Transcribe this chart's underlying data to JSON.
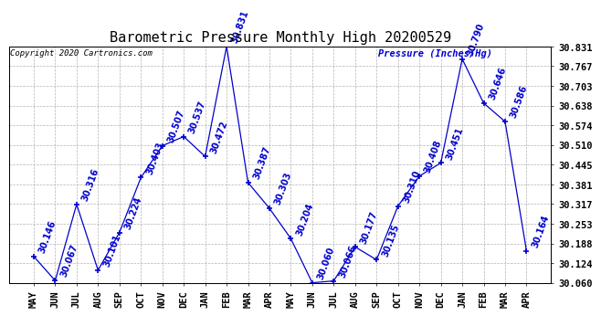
{
  "title": "Barometric Pressure Monthly High 20200529",
  "copyright": "Copyright 2020 Cartronics.com",
  "ylabel": "Pressure (Inches/Hg)",
  "categories": [
    "MAY",
    "JUN",
    "JUL",
    "AUG",
    "SEP",
    "OCT",
    "NOV",
    "DEC",
    "JAN",
    "FEB",
    "MAR",
    "APR",
    "MAY",
    "JUN",
    "JUL",
    "AUG",
    "SEP",
    "OCT",
    "NOV",
    "DEC",
    "JAN",
    "FEB",
    "MAR",
    "APR"
  ],
  "values": [
    30.146,
    30.067,
    30.316,
    30.101,
    30.224,
    30.403,
    30.507,
    30.537,
    30.472,
    30.831,
    30.387,
    30.303,
    30.204,
    30.06,
    30.066,
    30.177,
    30.135,
    30.31,
    30.408,
    30.451,
    30.79,
    30.646,
    30.586,
    30.164
  ],
  "ylim_min": 30.06,
  "ylim_max": 30.831,
  "yticks": [
    30.06,
    30.124,
    30.188,
    30.253,
    30.317,
    30.381,
    30.445,
    30.51,
    30.574,
    30.638,
    30.703,
    30.767,
    30.831
  ],
  "line_color": "#0000CC",
  "bg_color": "#FFFFFF",
  "grid_color": "#AAAAAA",
  "title_color": "#000000",
  "label_color": "#0000CC",
  "copyright_color": "#000000",
  "title_fontsize": 11,
  "tick_fontsize": 7.5,
  "annotation_fontsize": 7,
  "xtick_fontsize": 7.5
}
